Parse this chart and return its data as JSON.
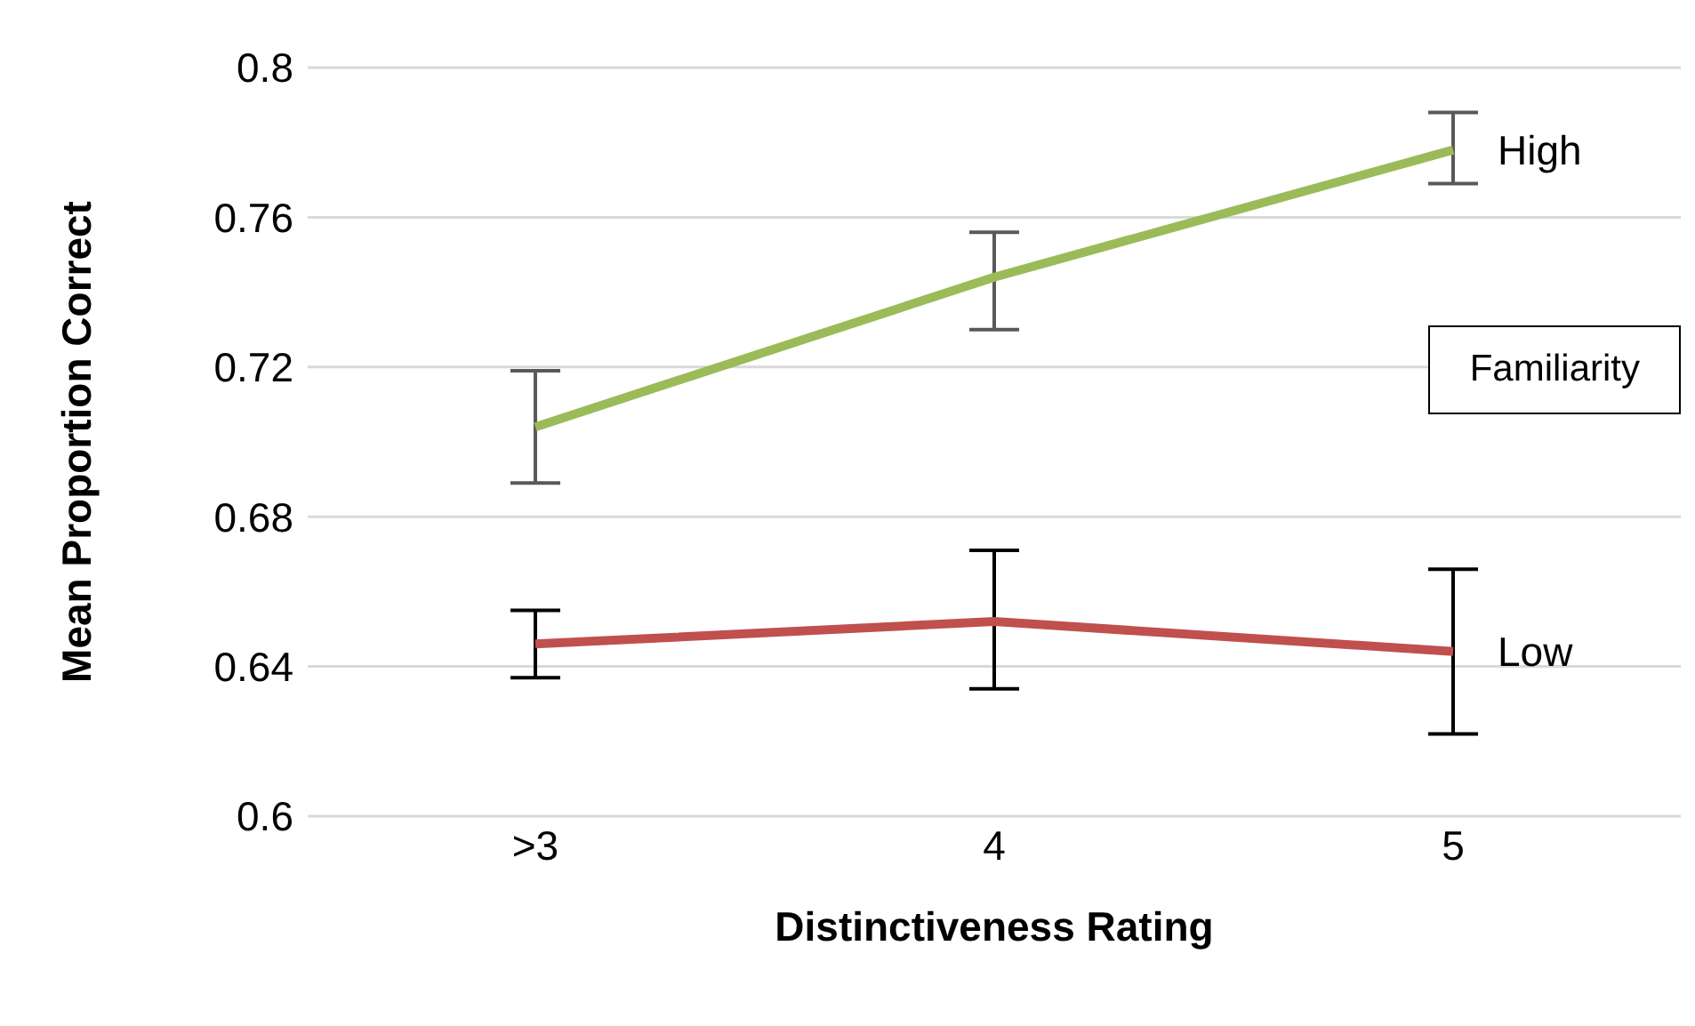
{
  "chart_data": {
    "type": "line",
    "xlabel": "Distinctiveness Rating",
    "ylabel": "Mean Proportion Correct",
    "legend_title": "Familiarity",
    "categories": [
      ">3",
      "4",
      "5"
    ],
    "series": [
      {
        "name": "High",
        "color": "#9bbb59",
        "values": [
          0.704,
          0.744,
          0.778
        ],
        "errors": [
          [
            0.689,
            0.719
          ],
          [
            0.73,
            0.756
          ],
          [
            0.769,
            0.788
          ]
        ]
      },
      {
        "name": "Low",
        "color": "#c0504d",
        "values": [
          0.646,
          0.652,
          0.644
        ],
        "errors": [
          [
            0.637,
            0.655
          ],
          [
            0.634,
            0.671
          ],
          [
            0.622,
            0.666
          ]
        ]
      }
    ],
    "ylim": [
      0.6,
      0.8
    ],
    "yticks": [
      0.6,
      0.64,
      0.68,
      0.72,
      0.76,
      0.8
    ],
    "grid": "y",
    "legend": false,
    "marker": "none",
    "line_style": "solid"
  }
}
